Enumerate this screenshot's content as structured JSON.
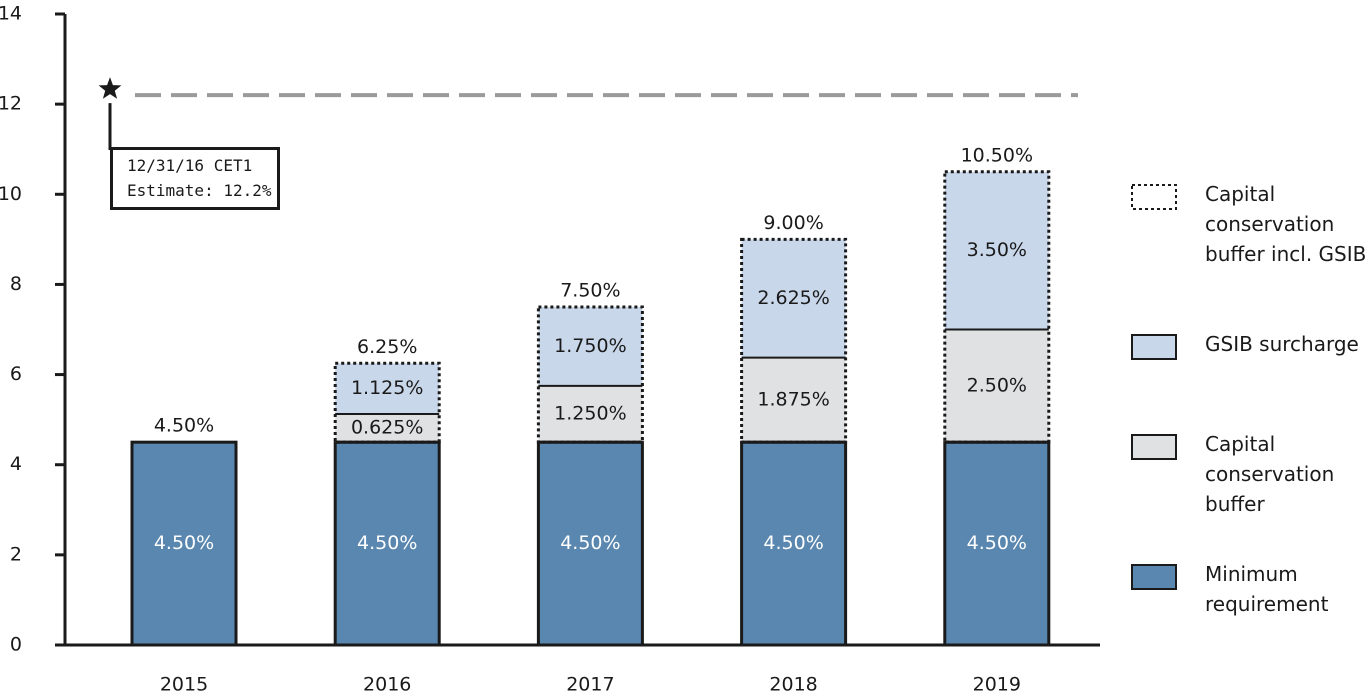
{
  "chart_data": {
    "type": "stacked_bar",
    "categories": [
      "2015",
      "2016",
      "2017",
      "2018",
      "2019"
    ],
    "series": [
      {
        "name": "Minimum requirement",
        "color": "#5a87b0",
        "values": [
          4.5,
          4.5,
          4.5,
          4.5,
          4.5
        ],
        "value_labels": [
          "4.50%",
          "4.50%",
          "4.50%",
          "4.50%",
          "4.50%"
        ]
      },
      {
        "name": "Capital conservation buffer",
        "color": "#e0e1e3",
        "values": [
          null,
          0.625,
          1.25,
          1.875,
          2.5
        ],
        "value_labels": [
          null,
          "0.625%",
          "1.250%",
          "1.875%",
          "2.50%"
        ]
      },
      {
        "name": "GSIB surcharge",
        "color": "#c9d7ea",
        "values": [
          null,
          1.125,
          1.75,
          2.625,
          3.5
        ],
        "value_labels": [
          null,
          "1.125%",
          "1.750%",
          "2.625%",
          "3.50%"
        ]
      }
    ],
    "outline": {
      "name": "Capital conservation buffer incl. GSIB"
    },
    "totals": {
      "values": [
        4.5,
        6.25,
        7.5,
        9.0,
        10.5
      ],
      "value_labels": [
        "4.50%",
        "6.25%",
        "7.50%",
        "9.00%",
        "10.50%"
      ]
    },
    "reference_line": {
      "value": 12.2,
      "lines": [
        "12/31/16 CET1",
        "Estimate: 12.2%"
      ]
    },
    "ylim": [
      0,
      14
    ],
    "yticks": [
      0,
      2,
      4,
      6,
      8,
      10,
      12,
      14
    ],
    "grid": false
  }
}
